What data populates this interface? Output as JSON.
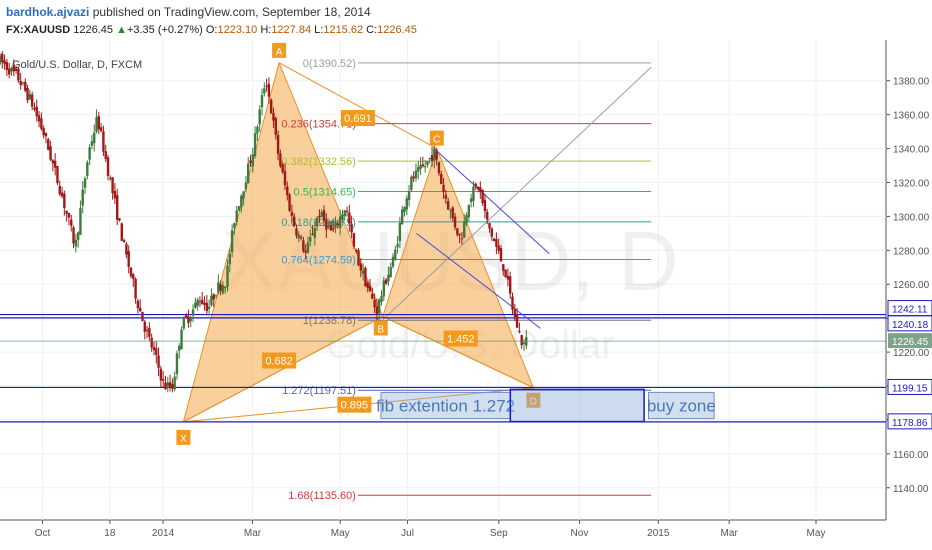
{
  "header": {
    "user": "bardhok.ajvazi",
    "published_text": "published on TradingView.com, September 18, 2014",
    "symbol": "FX:XAUUSD",
    "last": "1226.45",
    "change_arrow": "▲",
    "change": "+3.35 (+0.27%)",
    "o_label": "O:",
    "o": "1223.10",
    "h_label": "H:",
    "h": "1227.84",
    "l_label": "L:",
    "l": "1215.62",
    "c_label": "C:",
    "c": "1226.45"
  },
  "chart_data": {
    "type": "candlestick",
    "symbol_label": "Gold/U.S. Dollar, D, FXCM",
    "watermark_symbol": "XAUUSD, D",
    "watermark_name": "Gold/U.S. Dollar",
    "ylim": [
      1121,
      1404
    ],
    "y_ticks": [
      1140,
      1160,
      1180,
      1200,
      1220,
      1240,
      1260,
      1280,
      1300,
      1320,
      1340,
      1360,
      1380
    ],
    "x_ticks": [
      {
        "label": "Oct",
        "t": 0.048
      },
      {
        "label": "18",
        "t": 0.124
      },
      {
        "label": "2014",
        "t": 0.184
      },
      {
        "label": "Mar",
        "t": 0.285
      },
      {
        "label": "May",
        "t": 0.384
      },
      {
        "label": "Jul",
        "t": 0.46
      },
      {
        "label": "Sep",
        "t": 0.563
      },
      {
        "label": "Nov",
        "t": 0.654
      },
      {
        "label": "2015",
        "t": 0.743
      },
      {
        "label": "Mar",
        "t": 0.823
      },
      {
        "label": "May",
        "t": 0.921
      }
    ],
    "price_path": [
      [
        0.0,
        1392
      ],
      [
        0.02,
        1382
      ],
      [
        0.035,
        1368
      ],
      [
        0.05,
        1348
      ],
      [
        0.07,
        1312
      ],
      [
        0.085,
        1282
      ],
      [
        0.1,
        1338
      ],
      [
        0.11,
        1358
      ],
      [
        0.12,
        1332
      ],
      [
        0.14,
        1282
      ],
      [
        0.155,
        1250
      ],
      [
        0.165,
        1232
      ],
      [
        0.175,
        1218
      ],
      [
        0.185,
        1200
      ],
      [
        0.195,
        1200
      ],
      [
        0.205,
        1236
      ],
      [
        0.215,
        1242
      ],
      [
        0.225,
        1252
      ],
      [
        0.235,
        1246
      ],
      [
        0.245,
        1258
      ],
      [
        0.255,
        1262
      ],
      [
        0.265,
        1300
      ],
      [
        0.275,
        1318
      ],
      [
        0.285,
        1338
      ],
      [
        0.3,
        1382
      ],
      [
        0.315,
        1334
      ],
      [
        0.33,
        1298
      ],
      [
        0.345,
        1278
      ],
      [
        0.36,
        1302
      ],
      [
        0.375,
        1290
      ],
      [
        0.39,
        1306
      ],
      [
        0.4,
        1280
      ],
      [
        0.415,
        1258
      ],
      [
        0.425,
        1244
      ],
      [
        0.435,
        1262
      ],
      [
        0.445,
        1276
      ],
      [
        0.455,
        1306
      ],
      [
        0.465,
        1322
      ],
      [
        0.48,
        1330
      ],
      [
        0.49,
        1338
      ],
      [
        0.5,
        1316
      ],
      [
        0.51,
        1300
      ],
      [
        0.52,
        1286
      ],
      [
        0.53,
        1312
      ],
      [
        0.54,
        1318
      ],
      [
        0.55,
        1296
      ],
      [
        0.56,
        1282
      ],
      [
        0.57,
        1268
      ],
      [
        0.58,
        1242
      ],
      [
        0.59,
        1224
      ],
      [
        0.594,
        1226.45
      ]
    ],
    "pattern": {
      "points": [
        {
          "label": "X",
          "t": 0.207,
          "p": 1178.86
        },
        {
          "label": "A",
          "t": 0.315,
          "p": 1390.52
        },
        {
          "label": "B",
          "t": 0.432,
          "p": 1241
        },
        {
          "label": "C",
          "t": 0.493,
          "p": 1340
        },
        {
          "label": "D",
          "t": 0.602,
          "p": 1199
        }
      ],
      "ratios": [
        {
          "label": "0.682",
          "t": 0.315,
          "p": 1215
        },
        {
          "label": "0.691",
          "t": 0.404,
          "p": 1358
        },
        {
          "label": "1.452",
          "t": 0.52,
          "p": 1228
        },
        {
          "label": "0.895",
          "t": 0.4,
          "p": 1189
        }
      ]
    },
    "fib_levels": [
      {
        "label": "0(1390.52)",
        "p": 1390.52,
        "color": "#9e9e9e"
      },
      {
        "label": "0.236(1354.71)",
        "p": 1354.71,
        "color": "#d13b3b"
      },
      {
        "label": "0.382(1332.56)",
        "p": 1332.56,
        "color": "#a8c236"
      },
      {
        "label": "0.5(1314.65)",
        "p": 1314.65,
        "color": "#2eb84f"
      },
      {
        "label": "0.618(1296.75)",
        "p": 1296.75,
        "color": "#2e9e8e"
      },
      {
        "label": "0.764(1274.59)",
        "p": 1274.59,
        "color": "#3a9ad6"
      },
      {
        "label": "1(1238.78)",
        "p": 1238.78,
        "color": "#777777"
      },
      {
        "label": "1.272(1197.51)",
        "p": 1197.51,
        "color": "#5a5ad6"
      },
      {
        "label": "1.68(1135.60)",
        "p": 1135.6,
        "color": "#d13b3b"
      }
    ],
    "horizontal_lines": [
      {
        "p": 1242.11,
        "label": "1242.11"
      },
      {
        "p": 1240.18,
        "label": "1240.18"
      },
      {
        "p": 1199.15,
        "label": "1199.15"
      },
      {
        "p": 1178.86,
        "label": "1178.86"
      }
    ],
    "last_price": {
      "p": 1226.45,
      "label": "1226.45"
    },
    "annotations": {
      "fib_box": "fib extention 1.272",
      "buy_zone": "buy zone"
    },
    "colors": {
      "up": "#3d7a3d",
      "down": "#a01818",
      "pattern_fill": "#f6b15f",
      "pattern_stroke": "#e8902a",
      "h_line": "#1a1ac8",
      "channel": "#4a4ad6",
      "label_bg": "#f39a1e"
    }
  }
}
